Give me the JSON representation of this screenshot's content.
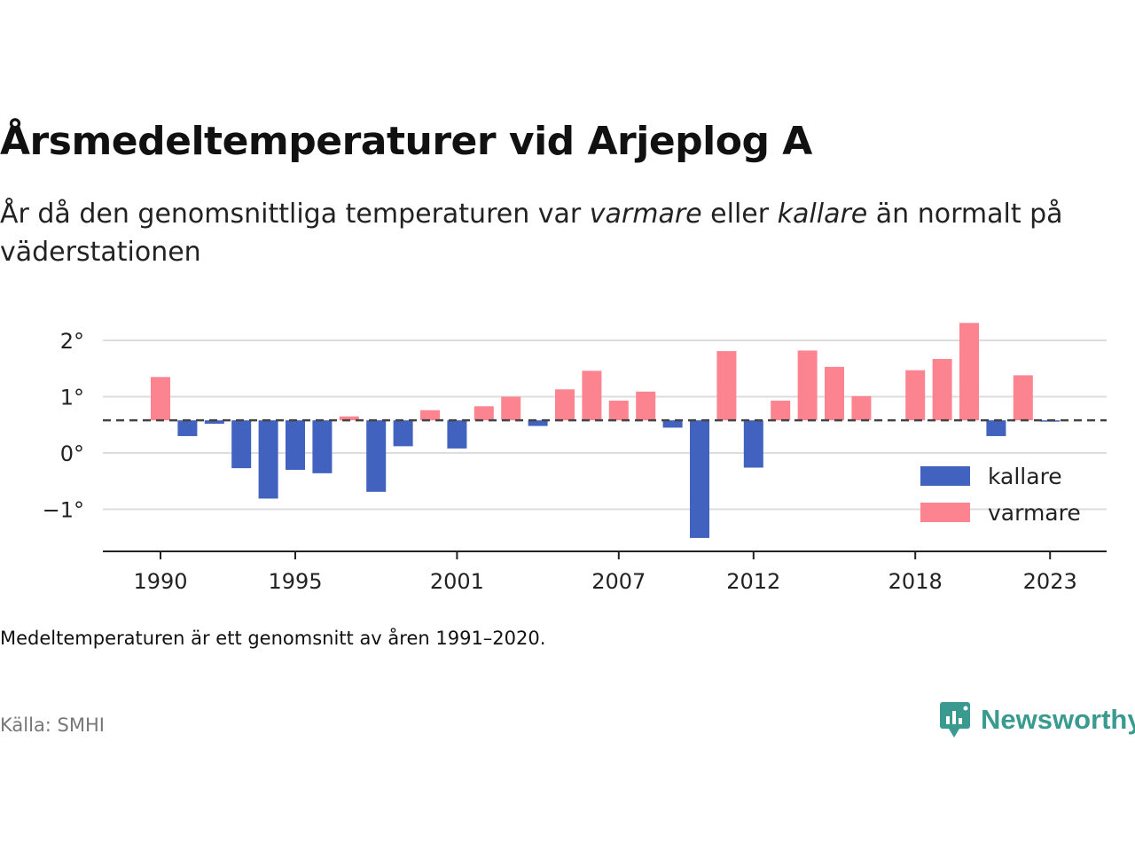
{
  "header": {
    "title": "Årsmedeltemperaturer vid Arjeplog A",
    "subtitle_parts": [
      "År då den genomsnittliga temperaturen var ",
      "varmare",
      " eller ",
      "kallare",
      " än normalt på väderstationen"
    ]
  },
  "footer": {
    "note": "Medeltemperaturen är ett genomsnitt av åren 1991–2020.",
    "source": "Källa: SMHI",
    "brand": "Newsworthy"
  },
  "colors": {
    "warmer": "#fc8490",
    "colder": "#4162bf",
    "brand": "#3a9a8f",
    "baseline": "#444444",
    "grid": "#dddddd"
  },
  "chart_data": {
    "type": "bar",
    "baseline": 0.58,
    "x": [
      1990,
      1991,
      1992,
      1993,
      1994,
      1995,
      1996,
      1997,
      1998,
      1999,
      2000,
      2001,
      2002,
      2003,
      2004,
      2005,
      2006,
      2007,
      2008,
      2009,
      2010,
      2011,
      2012,
      2013,
      2014,
      2015,
      2016,
      2017,
      2018,
      2019,
      2020,
      2021,
      2022,
      2023
    ],
    "values": [
      1.35,
      0.3,
      0.52,
      -0.27,
      -0.81,
      -0.3,
      -0.36,
      0.65,
      -0.69,
      0.12,
      0.76,
      0.08,
      0.83,
      1.0,
      0.48,
      1.13,
      1.46,
      0.93,
      1.09,
      0.45,
      -1.51,
      1.81,
      -0.26,
      0.93,
      1.82,
      1.53,
      1.01,
      null,
      1.47,
      1.67,
      2.31,
      0.3,
      1.38,
      0.56
    ],
    "xticks": [
      1990,
      1995,
      2001,
      2007,
      2012,
      2018,
      2023
    ],
    "ytick_labels": [
      "2°",
      "1°",
      "0°",
      "−1°"
    ],
    "ytick_values": [
      2,
      1,
      0,
      -1
    ],
    "ylim": [
      -1.75,
      2.45
    ],
    "grid": true,
    "legend": {
      "position": "bottom-right",
      "items": [
        {
          "label": "kallare",
          "color": "#4162bf"
        },
        {
          "label": "varmare",
          "color": "#fc8490"
        }
      ]
    }
  }
}
